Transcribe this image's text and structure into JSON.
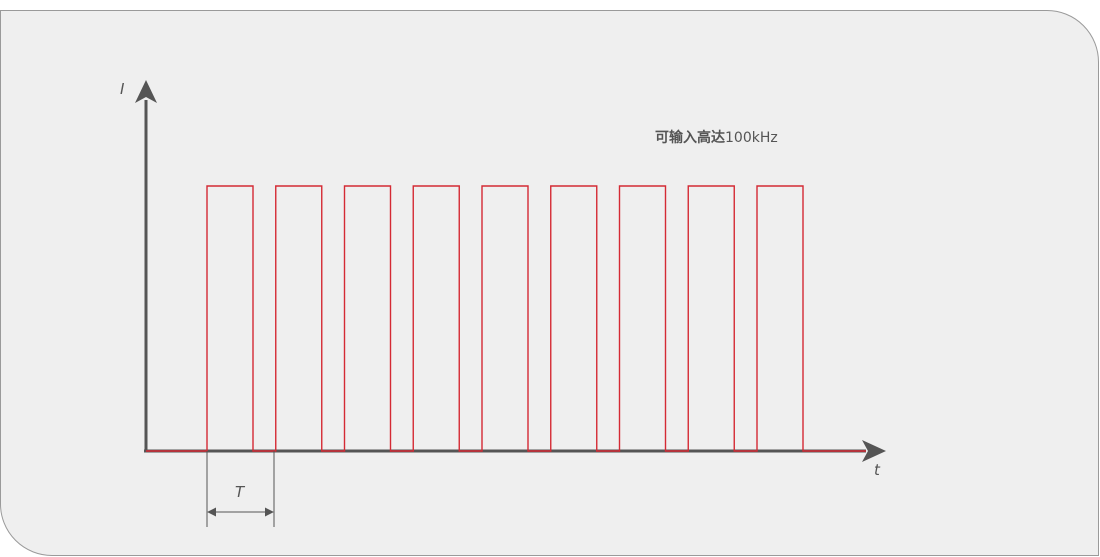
{
  "axes": {
    "y_label": "I",
    "x_label": "t"
  },
  "annotation": {
    "note_bold": "可输入高达",
    "note_rest": "100kHz"
  },
  "period": {
    "label": "T"
  },
  "signal": {
    "pulse_count": 9
  },
  "colors": {
    "axis": "#555555",
    "pulse": "#d42a34",
    "panel_bg": "#efefef",
    "panel_border": "#9a9a9a"
  }
}
